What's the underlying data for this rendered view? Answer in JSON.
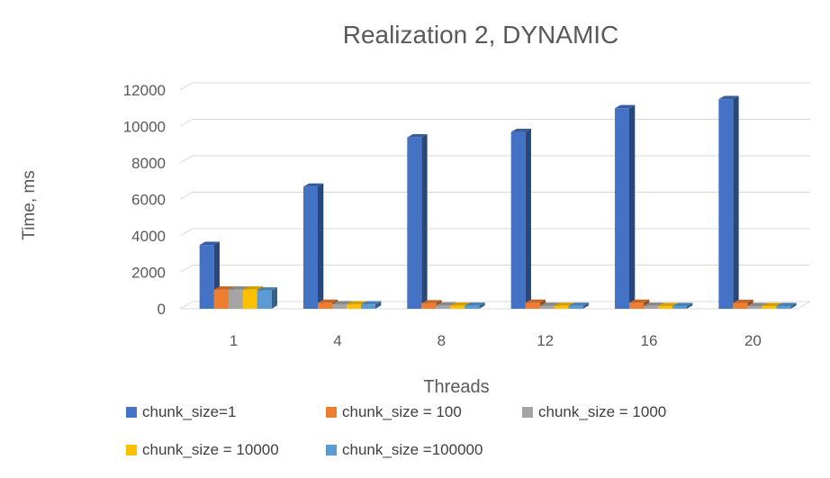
{
  "chart_data": {
    "type": "bar",
    "title": "Realization 2, DYNAMIC",
    "xlabel": "Threads",
    "ylabel": "Time, ms",
    "categories": [
      "1",
      "4",
      "8",
      "12",
      "16",
      "20"
    ],
    "ylim": [
      0,
      12000
    ],
    "yticks": [
      "0",
      "2000",
      "4000",
      "6000",
      "8000",
      "10000",
      "12000"
    ],
    "grid": true,
    "legend_position": "bottom",
    "style": "3d-clustered-column",
    "series": [
      {
        "name": "chunk_size=1",
        "color": "#4472C4",
        "values": [
          3500,
          6700,
          9400,
          9700,
          11000,
          11500
        ]
      },
      {
        "name": "chunk_size = 100",
        "color": "#ED7D31",
        "values": [
          1050,
          330,
          300,
          330,
          330,
          320
        ]
      },
      {
        "name": "chunk_size = 1000",
        "color": "#A5A5A5",
        "values": [
          1050,
          250,
          180,
          160,
          160,
          150
        ]
      },
      {
        "name": "chunk_size = 10000",
        "color": "#FFC000",
        "values": [
          1050,
          240,
          170,
          160,
          150,
          150
        ]
      },
      {
        "name": "chunk_size =100000",
        "color": "#5B9BD5",
        "values": [
          1000,
          240,
          170,
          160,
          150,
          150
        ]
      }
    ]
  }
}
